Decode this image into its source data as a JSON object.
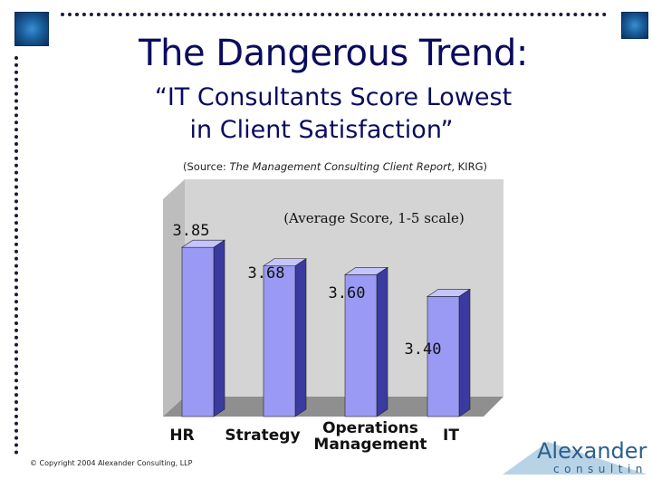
{
  "slide": {
    "title": "The Dangerous Trend:",
    "subtitle_line1": "“IT Consultants Score Lowest",
    "subtitle_line2": "in Client Satisfaction”",
    "source_prefix": "(Source: ",
    "source_italic": "The Management Consulting Client Report",
    "source_suffix": ", KIRG)",
    "copyright": "© Copyright 2004 Alexander Consulting, LLP",
    "logo_word1": "Alexander",
    "logo_word2": "consulting"
  },
  "colors": {
    "title": "#0b0b5e",
    "bar_front": "#9a9af5",
    "bar_side": "#3a3aa0",
    "bar_top": "#c4c4ff",
    "wall": "#d4d4d4",
    "floor": "#8f8f8f"
  },
  "chart_data": {
    "type": "bar",
    "title": "(Average Score, 1-5 scale)",
    "categories": [
      "HR",
      "Strategy",
      "Operations Management",
      "IT"
    ],
    "category_lines": [
      [
        "HR"
      ],
      [
        "Strategy"
      ],
      [
        "Operations",
        "Management"
      ],
      [
        "IT"
      ]
    ],
    "values": [
      3.85,
      3.68,
      3.6,
      3.4
    ],
    "value_labels": [
      "3.85",
      "3.68",
      "3.60",
      "3.40"
    ],
    "ylim": [
      2.3,
      4.1
    ],
    "grid": false,
    "legend": "none",
    "three_d": true
  }
}
